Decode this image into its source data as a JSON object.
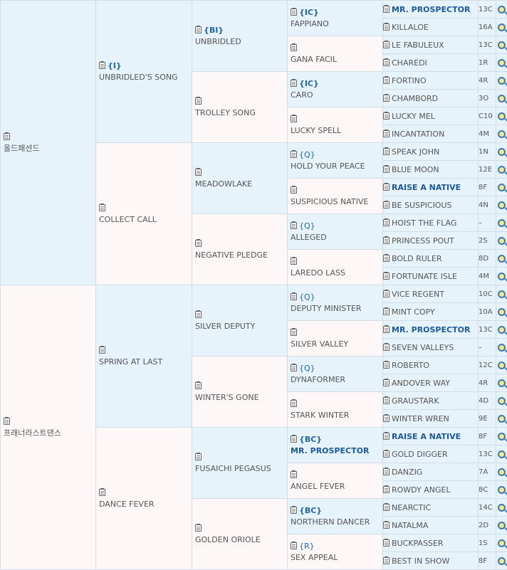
{
  "gen1": [
    {
      "name": "올드패션드",
      "cls": ""
    },
    {
      "name": "프래너라스트댄스",
      "cls": ""
    }
  ],
  "gen2": [
    {
      "name": "UNBRIDLED'S SONG",
      "cls": "{I}"
    },
    {
      "name": "COLLECT CALL",
      "cls": ""
    },
    {
      "name": "SPRING AT LAST",
      "cls": ""
    },
    {
      "name": "DANCE FEVER",
      "cls": ""
    }
  ],
  "gen3": [
    {
      "name": "UNBRIDLED",
      "cls": "{BI}"
    },
    {
      "name": "TROLLEY SONG",
      "cls": ""
    },
    {
      "name": "MEADOWLAKE",
      "cls": ""
    },
    {
      "name": "NEGATIVE PLEDGE",
      "cls": ""
    },
    {
      "name": "SILVER DEPUTY",
      "cls": ""
    },
    {
      "name": "WINTER'S GONE",
      "cls": ""
    },
    {
      "name": "FUSAICHI PEGASUS",
      "cls": ""
    },
    {
      "name": "GOLDEN ORIOLE",
      "cls": ""
    }
  ],
  "gen4": [
    {
      "name": "FAPPIANO",
      "cls": "{IC}"
    },
    {
      "name": "GANA FACIL",
      "cls": ""
    },
    {
      "name": "CARO",
      "cls": "{IC}"
    },
    {
      "name": "LUCKY SPELL",
      "cls": ""
    },
    {
      "name": "HOLD YOUR PEACE",
      "cls": "{Q}"
    },
    {
      "name": "SUSPICIOUS NATIVE",
      "cls": ""
    },
    {
      "name": "ALLEGED",
      "cls": "{Q}"
    },
    {
      "name": "LAREDO LASS",
      "cls": ""
    },
    {
      "name": "DEPUTY MINISTER",
      "cls": "{Q}"
    },
    {
      "name": "SILVER VALLEY",
      "cls": ""
    },
    {
      "name": "DYNAFORMER",
      "cls": "{Q}"
    },
    {
      "name": "STARK WINTER",
      "cls": ""
    },
    {
      "name": "MR. PROSPECTOR",
      "cls": "{BC}"
    },
    {
      "name": "ANGEL FEVER",
      "cls": ""
    },
    {
      "name": "NORTHERN DANCER",
      "cls": "{BC}"
    },
    {
      "name": "SEX APPEAL",
      "cls": "{R}"
    }
  ],
  "gen5": [
    {
      "name": "MR. PROSPECTOR",
      "code": "13C"
    },
    {
      "name": "KILLALOE",
      "code": "16A"
    },
    {
      "name": "LE FABULEUX",
      "code": "13C"
    },
    {
      "name": "CHAREDI",
      "code": "1R"
    },
    {
      "name": "FORTINO",
      "code": "4R"
    },
    {
      "name": "CHAMBORD",
      "code": "3O"
    },
    {
      "name": "LUCKY MEL",
      "code": "C10"
    },
    {
      "name": "INCANTATION",
      "code": "4M"
    },
    {
      "name": "SPEAK JOHN",
      "code": "1N"
    },
    {
      "name": "BLUE MOON",
      "code": "12E"
    },
    {
      "name": "RAISE A NATIVE",
      "code": "8F"
    },
    {
      "name": "BE SUSPICIOUS",
      "code": "4N"
    },
    {
      "name": "HOIST THE FLAG",
      "code": "–"
    },
    {
      "name": "PRINCESS POUT",
      "code": "2S"
    },
    {
      "name": "BOLD RULER",
      "code": "8D"
    },
    {
      "name": "FORTUNATE ISLE",
      "code": "4M"
    },
    {
      "name": "VICE REGENT",
      "code": "10C"
    },
    {
      "name": "MINT COPY",
      "code": "10A"
    },
    {
      "name": "MR. PROSPECTOR",
      "code": "13C"
    },
    {
      "name": "SEVEN VALLEYS",
      "code": "–"
    },
    {
      "name": "ROBERTO",
      "code": "12C"
    },
    {
      "name": "ANDOVER WAY",
      "code": "4R"
    },
    {
      "name": "GRAUSTARK",
      "code": "4D"
    },
    {
      "name": "WINTER WREN",
      "code": "9E"
    },
    {
      "name": "RAISE A NATIVE",
      "code": "8F"
    },
    {
      "name": "GOLD DIGGER",
      "code": "13C"
    },
    {
      "name": "DANZIG",
      "code": "7A"
    },
    {
      "name": "ROWDY ANGEL",
      "code": "8C"
    },
    {
      "name": "NEARCTIC",
      "code": "14C"
    },
    {
      "name": "NATALMA",
      "code": "2D"
    },
    {
      "name": "BUCKPASSER",
      "code": "1S"
    },
    {
      "name": "BEST IN SHOW",
      "code": "8F"
    }
  ]
}
